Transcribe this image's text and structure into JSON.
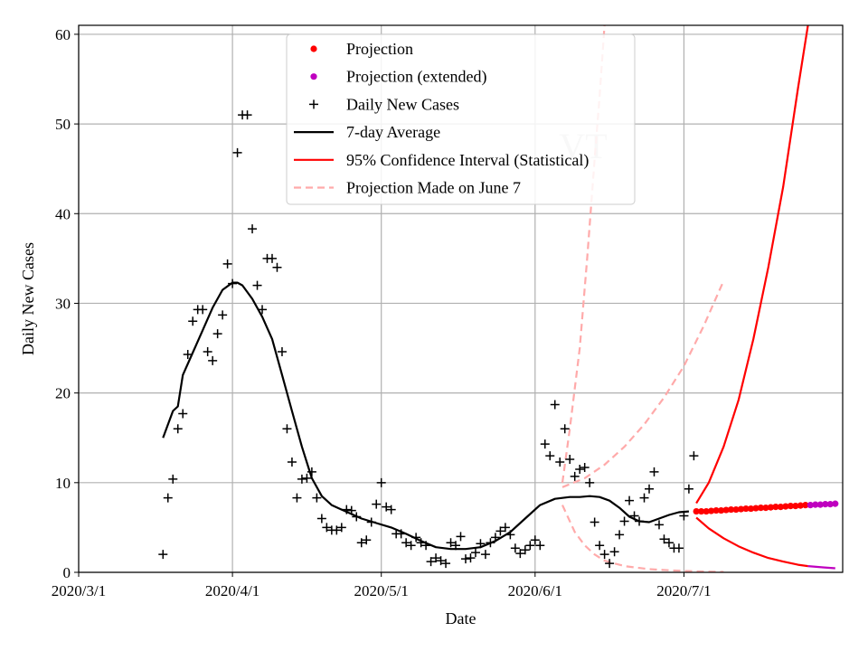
{
  "chart_data": {
    "type": "scatter",
    "title": "",
    "watermark": "VT",
    "xlabel": "Date",
    "ylabel": "Daily New Cases",
    "x_unit": "days since 2020-03-01",
    "xlim": [
      0,
      154
    ],
    "ylim": [
      0,
      61
    ],
    "grid": true,
    "x_ticks": [
      {
        "value": 0,
        "label": "2020/3/1"
      },
      {
        "value": 31,
        "label": "2020/4/1"
      },
      {
        "value": 61,
        "label": "2020/5/1"
      },
      {
        "value": 92,
        "label": "2020/6/1"
      },
      {
        "value": 122,
        "label": "2020/7/1"
      }
    ],
    "y_ticks": [
      {
        "value": 0,
        "label": "0"
      },
      {
        "value": 10,
        "label": "10"
      },
      {
        "value": 20,
        "label": "20"
      },
      {
        "value": 30,
        "label": "30"
      },
      {
        "value": 40,
        "label": "40"
      },
      {
        "value": 50,
        "label": "50"
      },
      {
        "value": 60,
        "label": "60"
      }
    ],
    "legend": {
      "position": "top-center",
      "entries": [
        {
          "label": "Projection",
          "marker": "dot",
          "color": "#ff0000"
        },
        {
          "label": "Projection (extended)",
          "marker": "dot",
          "color": "#bf00bf"
        },
        {
          "label": "Daily New Cases",
          "marker": "plus",
          "color": "#000000"
        },
        {
          "label": "7-day Average",
          "marker": "line",
          "color": "#000000"
        },
        {
          "label": "95% Confidence Interval (Statistical)",
          "marker": "line",
          "color": "#ff0000"
        },
        {
          "label": "Projection Made on June 7",
          "marker": "dashed",
          "color": "#ffaaaa"
        }
      ]
    },
    "series": [
      {
        "name": "Daily New Cases",
        "type": "scatter",
        "marker": "plus",
        "color": "#000000",
        "points": [
          [
            17,
            2
          ],
          [
            18,
            8.3
          ],
          [
            19,
            10.4
          ],
          [
            20,
            16
          ],
          [
            21,
            17.7
          ],
          [
            22,
            24.3
          ],
          [
            23,
            28
          ],
          [
            24,
            29.3
          ],
          [
            25,
            29.3
          ],
          [
            26,
            24.6
          ],
          [
            27,
            23.6
          ],
          [
            28,
            26.6
          ],
          [
            29,
            28.7
          ],
          [
            30,
            34.4
          ],
          [
            31,
            32.2
          ],
          [
            32,
            46.8
          ],
          [
            33,
            51
          ],
          [
            34,
            51
          ],
          [
            35,
            38.3
          ],
          [
            36,
            32
          ],
          [
            37,
            29.3
          ],
          [
            38,
            35
          ],
          [
            39,
            35
          ],
          [
            40,
            34
          ],
          [
            41,
            24.6
          ],
          [
            42,
            16
          ],
          [
            43,
            12.3
          ],
          [
            44,
            8.3
          ],
          [
            45,
            10.4
          ],
          [
            46,
            10.5
          ],
          [
            47,
            11.2
          ],
          [
            48,
            8.3
          ],
          [
            49,
            6
          ],
          [
            50,
            5
          ],
          [
            51,
            4.7
          ],
          [
            52,
            4.7
          ],
          [
            53,
            5
          ],
          [
            54,
            7
          ],
          [
            55,
            6.9
          ],
          [
            56,
            6.2
          ],
          [
            57,
            3.3
          ],
          [
            58,
            3.6
          ],
          [
            59,
            5.6
          ],
          [
            60,
            7.6
          ],
          [
            61,
            10
          ],
          [
            62,
            7.3
          ],
          [
            63,
            7
          ],
          [
            64,
            4.3
          ],
          [
            65,
            4.3
          ],
          [
            66,
            3.3
          ],
          [
            67,
            3
          ],
          [
            68,
            3.9
          ],
          [
            69,
            3.3
          ],
          [
            70,
            3
          ],
          [
            71,
            1.2
          ],
          [
            72,
            1.6
          ],
          [
            73,
            1.3
          ],
          [
            74,
            1
          ],
          [
            75,
            3.3
          ],
          [
            76,
            3
          ],
          [
            77,
            4
          ],
          [
            78,
            1.5
          ],
          [
            79,
            1.6
          ],
          [
            80,
            2.2
          ],
          [
            81,
            3.2
          ],
          [
            82,
            2
          ],
          [
            83,
            3.3
          ],
          [
            84,
            3.9
          ],
          [
            85,
            4.6
          ],
          [
            86,
            5
          ],
          [
            87,
            4.2
          ],
          [
            88,
            2.7
          ],
          [
            89,
            2.1
          ],
          [
            90,
            2.5
          ],
          [
            91,
            3
          ],
          [
            92,
            3.6
          ],
          [
            93,
            3
          ],
          [
            94,
            14.3
          ],
          [
            95,
            13
          ],
          [
            96,
            18.7
          ],
          [
            97,
            12.3
          ],
          [
            98,
            16
          ],
          [
            99,
            12.6
          ],
          [
            100,
            10.7
          ],
          [
            101,
            11.5
          ],
          [
            102,
            11.7
          ],
          [
            103,
            10
          ],
          [
            104,
            5.6
          ],
          [
            105,
            3
          ],
          [
            106,
            2
          ],
          [
            107,
            1
          ],
          [
            108,
            2.3
          ],
          [
            109,
            4.2
          ],
          [
            110,
            5.7
          ],
          [
            111,
            8
          ],
          [
            112,
            6.3
          ],
          [
            113,
            5.7
          ],
          [
            114,
            8.3
          ],
          [
            115,
            9.3
          ],
          [
            116,
            11.2
          ],
          [
            117,
            5.3
          ],
          [
            118,
            3.7
          ],
          [
            119,
            3.3
          ],
          [
            120,
            2.7
          ],
          [
            121,
            2.7
          ],
          [
            122,
            6.3
          ],
          [
            123,
            9.3
          ],
          [
            124,
            13
          ]
        ]
      },
      {
        "name": "7-day Average",
        "type": "line",
        "color": "#000000",
        "points": [
          [
            17,
            15
          ],
          [
            18,
            16.5
          ],
          [
            19,
            18
          ],
          [
            20,
            18.5
          ],
          [
            21,
            22
          ],
          [
            23,
            24.5
          ],
          [
            25,
            27
          ],
          [
            27,
            29.5
          ],
          [
            29,
            31.5
          ],
          [
            31,
            32.3
          ],
          [
            32,
            32.3
          ],
          [
            33,
            32
          ],
          [
            35,
            30.5
          ],
          [
            37,
            28.5
          ],
          [
            39,
            26
          ],
          [
            41,
            22
          ],
          [
            43,
            18
          ],
          [
            45,
            14
          ],
          [
            47,
            10.5
          ],
          [
            49,
            8.5
          ],
          [
            51,
            7.5
          ],
          [
            53,
            7
          ],
          [
            55,
            6.5
          ],
          [
            57,
            6
          ],
          [
            60,
            5.5
          ],
          [
            63,
            5
          ],
          [
            66,
            4.3
          ],
          [
            69,
            3.5
          ],
          [
            72,
            2.8
          ],
          [
            75,
            2.6
          ],
          [
            78,
            2.6
          ],
          [
            81,
            2.8
          ],
          [
            84,
            3.5
          ],
          [
            87,
            4.5
          ],
          [
            90,
            6
          ],
          [
            93,
            7.5
          ],
          [
            96,
            8.2
          ],
          [
            99,
            8.4
          ],
          [
            101,
            8.4
          ],
          [
            103,
            8.5
          ],
          [
            105,
            8.4
          ],
          [
            107,
            8
          ],
          [
            109,
            7.2
          ],
          [
            111,
            6.2
          ],
          [
            113,
            5.7
          ],
          [
            115,
            5.6
          ],
          [
            117,
            6
          ],
          [
            119,
            6.4
          ],
          [
            121,
            6.7
          ],
          [
            123,
            6.8
          ]
        ]
      },
      {
        "name": "Projection",
        "type": "scatter",
        "marker": "dot",
        "color": "#ff0000",
        "points": [
          [
            124.5,
            6.8
          ],
          [
            125.5,
            6.8
          ],
          [
            126.5,
            6.8
          ],
          [
            127.5,
            6.85
          ],
          [
            128.5,
            6.9
          ],
          [
            129.5,
            6.9
          ],
          [
            130.5,
            6.95
          ],
          [
            131.5,
            7
          ],
          [
            132.5,
            7
          ],
          [
            133.5,
            7.05
          ],
          [
            134.5,
            7.1
          ],
          [
            135.5,
            7.1
          ],
          [
            136.5,
            7.15
          ],
          [
            137.5,
            7.2
          ],
          [
            138.5,
            7.2
          ],
          [
            139.5,
            7.25
          ],
          [
            140.5,
            7.3
          ],
          [
            141.5,
            7.3
          ],
          [
            142.5,
            7.35
          ],
          [
            143.5,
            7.4
          ],
          [
            144.5,
            7.4
          ],
          [
            145.5,
            7.45
          ],
          [
            146.5,
            7.5
          ]
        ]
      },
      {
        "name": "Projection (extended)",
        "type": "scatter",
        "marker": "dot",
        "color": "#bf00bf",
        "points": [
          [
            147.5,
            7.5
          ],
          [
            148.5,
            7.55
          ],
          [
            149.5,
            7.55
          ],
          [
            150.5,
            7.6
          ],
          [
            151.5,
            7.6
          ],
          [
            152.5,
            7.65
          ]
        ]
      },
      {
        "name": "95% Confidence Interval (Statistical) upper",
        "type": "line",
        "color": "#ff0000",
        "points": [
          [
            124.5,
            7.7
          ],
          [
            127,
            10
          ],
          [
            130,
            14
          ],
          [
            133,
            19.2
          ],
          [
            136,
            26
          ],
          [
            139,
            34
          ],
          [
            142,
            43
          ],
          [
            145,
            54
          ],
          [
            147,
            61
          ]
        ]
      },
      {
        "name": "95% Confidence Interval (Statistical) lower",
        "type": "line",
        "color": "#ff0000",
        "points": [
          [
            124.5,
            6.1
          ],
          [
            127,
            4.9
          ],
          [
            130,
            3.8
          ],
          [
            133,
            2.9
          ],
          [
            136,
            2.2
          ],
          [
            139,
            1.6
          ],
          [
            142,
            1.2
          ],
          [
            145,
            0.85
          ],
          [
            147,
            0.7
          ]
        ]
      },
      {
        "name": "95% Confidence Interval (extended lower)",
        "type": "line",
        "color": "#bf00bf",
        "points": [
          [
            147,
            0.7
          ],
          [
            150,
            0.55
          ],
          [
            152.5,
            0.45
          ]
        ]
      },
      {
        "name": "Projection Made on June 7 (upper)",
        "type": "line",
        "dash": true,
        "color": "#ffaaaa",
        "points": [
          [
            97.5,
            10
          ],
          [
            99,
            16
          ],
          [
            101,
            25
          ],
          [
            102.5,
            35
          ],
          [
            104,
            46
          ],
          [
            105,
            53
          ],
          [
            106,
            61
          ]
        ]
      },
      {
        "name": "Projection Made on June 7 (middle)",
        "type": "line",
        "dash": true,
        "color": "#ffaaaa",
        "points": [
          [
            97.5,
            9.5
          ],
          [
            102,
            10.5
          ],
          [
            106,
            12
          ],
          [
            110,
            14
          ],
          [
            114,
            16.5
          ],
          [
            118,
            19.5
          ],
          [
            122,
            23
          ],
          [
            126,
            27.5
          ],
          [
            128,
            30
          ],
          [
            130,
            32.5
          ]
        ]
      },
      {
        "name": "Projection Made on June 7 (lower)",
        "type": "line",
        "dash": true,
        "color": "#ffaaaa",
        "points": [
          [
            97.5,
            7.5
          ],
          [
            100,
            4.5
          ],
          [
            102,
            3
          ],
          [
            104,
            2
          ],
          [
            106,
            1.3
          ],
          [
            110,
            0.7
          ],
          [
            115,
            0.35
          ],
          [
            120,
            0.2
          ],
          [
            125,
            0.1
          ],
          [
            130,
            0.05
          ]
        ]
      }
    ]
  }
}
